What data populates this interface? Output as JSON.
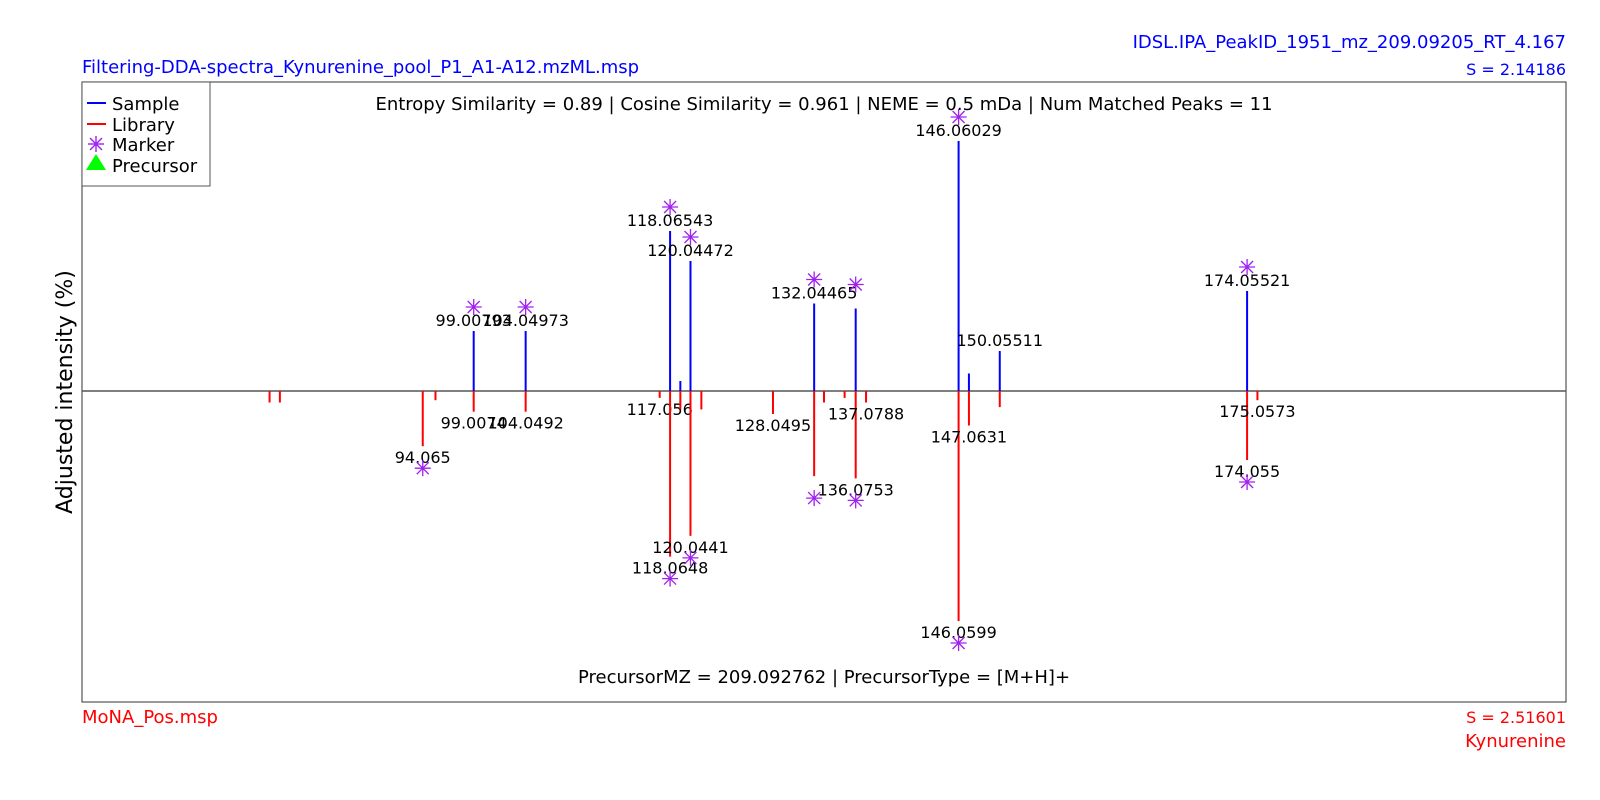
{
  "header": {
    "left_title": "Filtering-DDA-spectra_Kynurenine_pool_P1_A1-A12.mzML.msp",
    "right_title": "IDSL.IPA_PeakID_1951_mz_209.09205_RT_4.167",
    "right_score": "S = 2.14186",
    "color": "#0000ff"
  },
  "footer": {
    "left_title": "MoNA_Pos.msp",
    "right_score": "S = 2.51601",
    "right_name": "Kynurenine",
    "color": "#ff0000"
  },
  "ylabel": "Adjusted intensity (%)",
  "annotations": {
    "similarity": "Entropy Similarity = 0.89 | Cosine Similarity = 0.961 | NEME = 0.5 mDa | Num Matched Peaks = 11",
    "precursor": "PrecursorMZ = 209.092762 | PrecursorType = [M+H]+"
  },
  "legend": {
    "placement": "top-left",
    "items": [
      {
        "label": "Sample",
        "symbol": "line",
        "color": "#0000ff"
      },
      {
        "label": "Library",
        "symbol": "line",
        "color": "#ff0000"
      },
      {
        "label": "Marker",
        "symbol": "asterisk",
        "color": "#a020f0"
      },
      {
        "label": "Precursor",
        "symbol": "triangle",
        "color": "#00ff00"
      }
    ]
  },
  "chart_data": {
    "type": "mirror-spectrum",
    "xlim": [
      61,
      205
    ],
    "ylim": [
      -100,
      100
    ],
    "colors": {
      "sample": "#0000ff",
      "library": "#ff0000",
      "marker": "#a020f0",
      "baseline": "#555555"
    },
    "sample": [
      {
        "mz": 99.00793,
        "intensity": 24,
        "label": "99.00793",
        "marker": true
      },
      {
        "mz": 104.04973,
        "intensity": 24,
        "label": "104.04973",
        "marker": true
      },
      {
        "mz": 118.06543,
        "intensity": 64,
        "label": "118.06543",
        "marker": true
      },
      {
        "mz": 119.06,
        "intensity": 4
      },
      {
        "mz": 120.04472,
        "intensity": 52,
        "label": "120.04472",
        "marker": true
      },
      {
        "mz": 132.04465,
        "intensity": 35,
        "label": "132.04465",
        "marker": true
      },
      {
        "mz": 136.0753,
        "intensity": 33,
        "marker": true
      },
      {
        "mz": 146.06029,
        "intensity": 100,
        "label": "146.06029",
        "marker": true
      },
      {
        "mz": 147.0631,
        "intensity": 7
      },
      {
        "mz": 150.05511,
        "intensity": 16,
        "label": "150.05511"
      },
      {
        "mz": 174.05521,
        "intensity": 40,
        "label": "174.05521",
        "marker": true
      }
    ],
    "library": [
      {
        "mz": 79.2,
        "intensity": 5
      },
      {
        "mz": 80.2,
        "intensity": 5
      },
      {
        "mz": 94.065,
        "intensity": 24,
        "label": "94.065",
        "marker": true
      },
      {
        "mz": 95.3,
        "intensity": 4
      },
      {
        "mz": 99.0074,
        "intensity": 9,
        "label": "99.0074"
      },
      {
        "mz": 104.0492,
        "intensity": 9,
        "label": "104.0492"
      },
      {
        "mz": 117.056,
        "intensity": 3,
        "label": "117.056"
      },
      {
        "mz": 118.0648,
        "intensity": 72,
        "label": "118.0648",
        "marker": true
      },
      {
        "mz": 119.06,
        "intensity": 8
      },
      {
        "mz": 120.0441,
        "intensity": 63,
        "label": "120.0441",
        "marker": true
      },
      {
        "mz": 121.1,
        "intensity": 8
      },
      {
        "mz": 128.0495,
        "intensity": 10,
        "label": "128.0495"
      },
      {
        "mz": 132.04465,
        "intensity": 37,
        "marker": true
      },
      {
        "mz": 133.0,
        "intensity": 5
      },
      {
        "mz": 135.0,
        "intensity": 3
      },
      {
        "mz": 136.0753,
        "intensity": 38,
        "label": "136.0753",
        "marker": true
      },
      {
        "mz": 137.0788,
        "intensity": 5,
        "label": "137.0788"
      },
      {
        "mz": 146.0599,
        "intensity": 100,
        "label": "146.0599",
        "marker": true
      },
      {
        "mz": 147.0631,
        "intensity": 15,
        "label": "147.0631"
      },
      {
        "mz": 150.05511,
        "intensity": 7
      },
      {
        "mz": 174.055,
        "intensity": 30,
        "label": "174.055",
        "marker": true
      },
      {
        "mz": 175.0573,
        "intensity": 4,
        "label": "175.0573"
      }
    ]
  }
}
